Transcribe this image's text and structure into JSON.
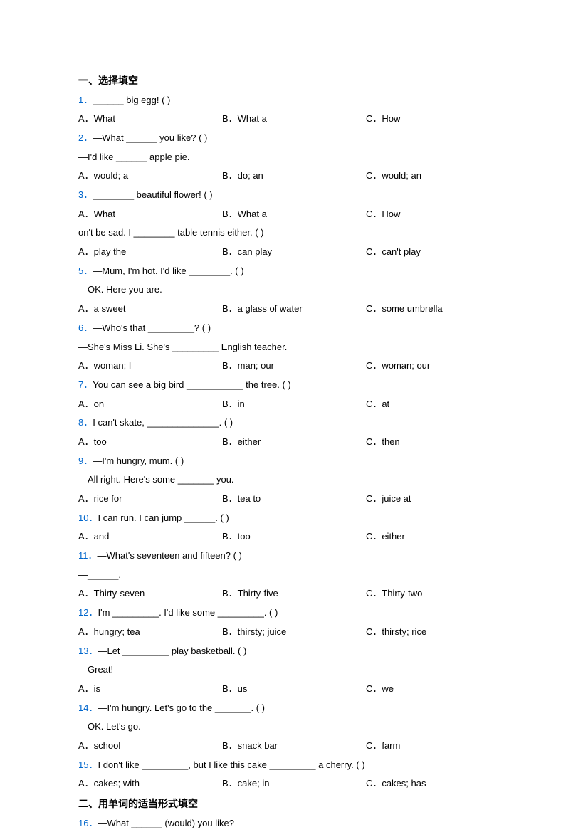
{
  "section1": {
    "title": "一、选择填空",
    "questions": [
      {
        "num": "1．",
        "text": "______ big egg! (    )",
        "options": {
          "a": "A．What",
          "b": "B．What a",
          "c": "C．How"
        }
      },
      {
        "num": "2．",
        "text": "—What ______ you like? (    )",
        "cont": "—I'd like ______ apple pie.",
        "options": {
          "a": "A．would; a",
          "b": "B．do; an",
          "c": "C．would; an"
        }
      },
      {
        "num": "3．",
        "text": "________ beautiful flower! (     )",
        "options": {
          "a": "A．What",
          "b": "B．What a",
          "c": "C．How"
        }
      },
      {
        "num": "",
        "text": "on't be sad. I ________ table tennis either. (    )",
        "options": {
          "a": "A．play the",
          "b": "B．can play",
          "c": "C．can't play"
        }
      },
      {
        "num": "5．",
        "text": "—Mum, I'm hot. I'd like ________. (    )",
        "cont": "—OK. Here you are.",
        "options": {
          "a": "A．a sweet",
          "b": "B．a glass of water",
          "c": "C．some umbrella"
        }
      },
      {
        "num": "6．",
        "text": "—Who's that _________? (    )",
        "cont": "—She's Miss Li. She's _________ English teacher.",
        "options": {
          "a": "A．woman; I",
          "b": "B．man; our",
          "c": "C．woman; our"
        }
      },
      {
        "num": "7．",
        "text": "You can see a big bird ___________ the tree. (    )",
        "options": {
          "a": "A．on",
          "b": "B．in",
          "c": "C．at"
        }
      },
      {
        "num": "8．",
        "text": "I can't skate, ______________. (    )",
        "options": {
          "a": "A．too",
          "b": "B．either",
          "c": "C．then"
        }
      },
      {
        "num": "9．",
        "text": "—I'm hungry, mum. (     )",
        "cont": "—All right. Here's some _______ you.",
        "options": {
          "a": "A．rice for",
          "b": "B．tea to",
          "c": "C．juice at"
        }
      },
      {
        "num": "10．",
        "text": "I can run. I can jump ______. (     )",
        "options": {
          "a": "A．and",
          "b": "B．too",
          "c": "C．either"
        }
      },
      {
        "num": "11．",
        "text": "—What's seventeen and fifteen? (     )",
        "cont": "—______.",
        "options": {
          "a": "A．Thirty-seven",
          "b": "B．Thirty-five",
          "c": "C．Thirty-two"
        }
      },
      {
        "num": "12．",
        "text": "I'm _________. I'd like some _________. (     )",
        "options": {
          "a": "A．hungry; tea",
          "b": "B．thirsty; juice",
          "c": "C．thirsty; rice"
        }
      },
      {
        "num": "13．",
        "text": "—Let _________ play basketball. (     )",
        "cont": "—Great!",
        "options": {
          "a": "A．is",
          "b": "B．us",
          "c": "C．we"
        }
      },
      {
        "num": "14．",
        "text": "—I'm hungry. Let's go to the _______. (     )",
        "cont": "—OK. Let's go.",
        "options": {
          "a": "A．school",
          "b": "B．snack bar",
          "c": "C．farm"
        }
      },
      {
        "num": "15．",
        "text": "I don't like _________, but I like this cake _________ a cherry. (    )",
        "options": {
          "a": "A．cakes; with",
          "b": "B．cake; in",
          "c": "C．cakes; has"
        }
      }
    ]
  },
  "section2": {
    "title": "二、用单词的适当形式填空",
    "questions": [
      {
        "num": "16．",
        "text": "—What ______ (would) you like?"
      }
    ]
  }
}
